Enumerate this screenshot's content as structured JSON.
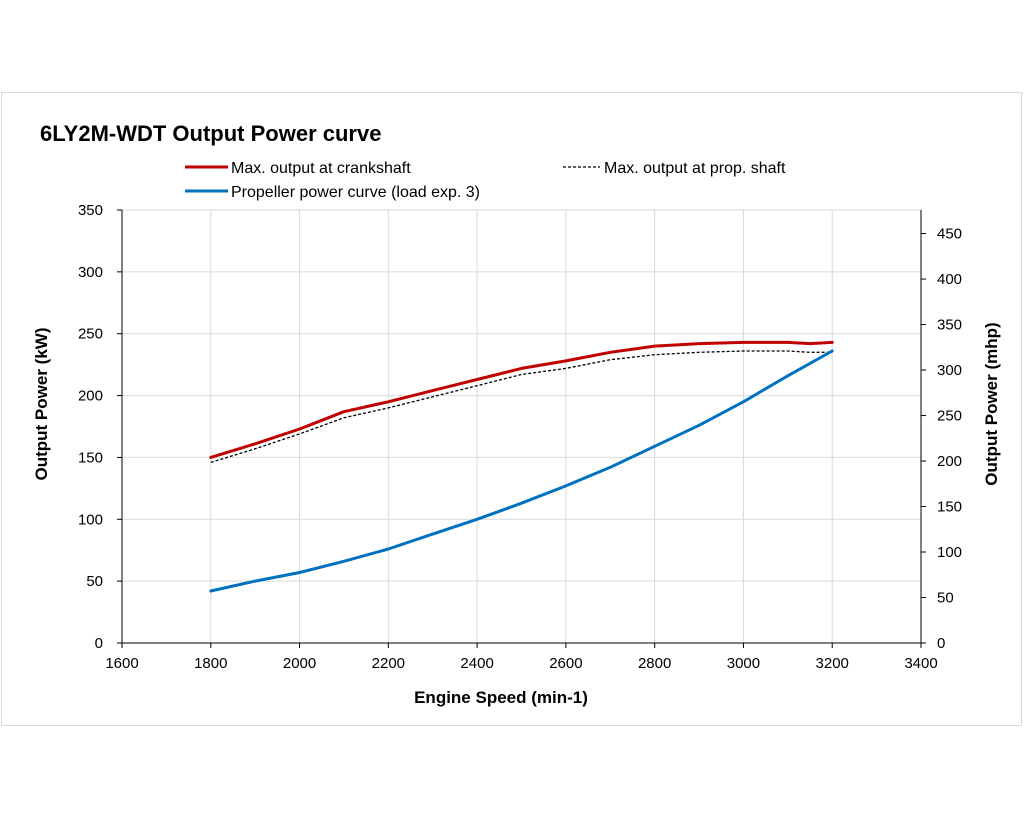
{
  "chart_data": {
    "type": "line",
    "title": "6LY2M-WDT Output Power curve",
    "xlabel": "Engine Speed (min-1)",
    "ylabel": "Output Power (kW)",
    "y2label": "Output Power (mhp)",
    "xlim": [
      1600,
      3400
    ],
    "ylim": [
      0,
      350
    ],
    "y2lim": [
      0,
      475.9
    ],
    "x_ticks": [
      1600,
      1800,
      2000,
      2200,
      2400,
      2600,
      2800,
      3000,
      3200,
      3400
    ],
    "y_ticks": [
      0,
      50,
      100,
      150,
      200,
      250,
      300,
      350
    ],
    "y2_ticks": [
      0,
      50,
      100,
      150,
      200,
      250,
      300,
      350,
      400,
      450
    ],
    "grid": true,
    "legend_position": "top",
    "series": [
      {
        "name": "Max. output at crankshaft",
        "color": "#c00000",
        "style": "solid",
        "x": [
          1800,
          1900,
          2000,
          2100,
          2200,
          2300,
          2400,
          2500,
          2600,
          2700,
          2800,
          2900,
          3000,
          3100,
          3150,
          3200
        ],
        "values": [
          150,
          161,
          173,
          187,
          195,
          204,
          213,
          222,
          228,
          235,
          240,
          242,
          243,
          243,
          242,
          243
        ]
      },
      {
        "name": "Max. output at prop. shaft",
        "color": "#000000",
        "style": "dashed",
        "x": [
          1800,
          1900,
          2000,
          2100,
          2200,
          2300,
          2400,
          2500,
          2600,
          2700,
          2800,
          2900,
          3000,
          3100,
          3150,
          3200
        ],
        "values": [
          146,
          157,
          169,
          182,
          190,
          199,
          208,
          217,
          222,
          229,
          233,
          235,
          236,
          236,
          235,
          235
        ]
      },
      {
        "name": "Propeller power curve (load exp. 3)",
        "color": "#0070c0",
        "style": "solid",
        "x": [
          1800,
          1900,
          2000,
          2100,
          2200,
          2300,
          2400,
          2500,
          2600,
          2700,
          2800,
          2900,
          3000,
          3100,
          3200
        ],
        "values": [
          42,
          50,
          57,
          66,
          76,
          88,
          100,
          113,
          127,
          142,
          159,
          176,
          195,
          216,
          236
        ]
      }
    ]
  }
}
